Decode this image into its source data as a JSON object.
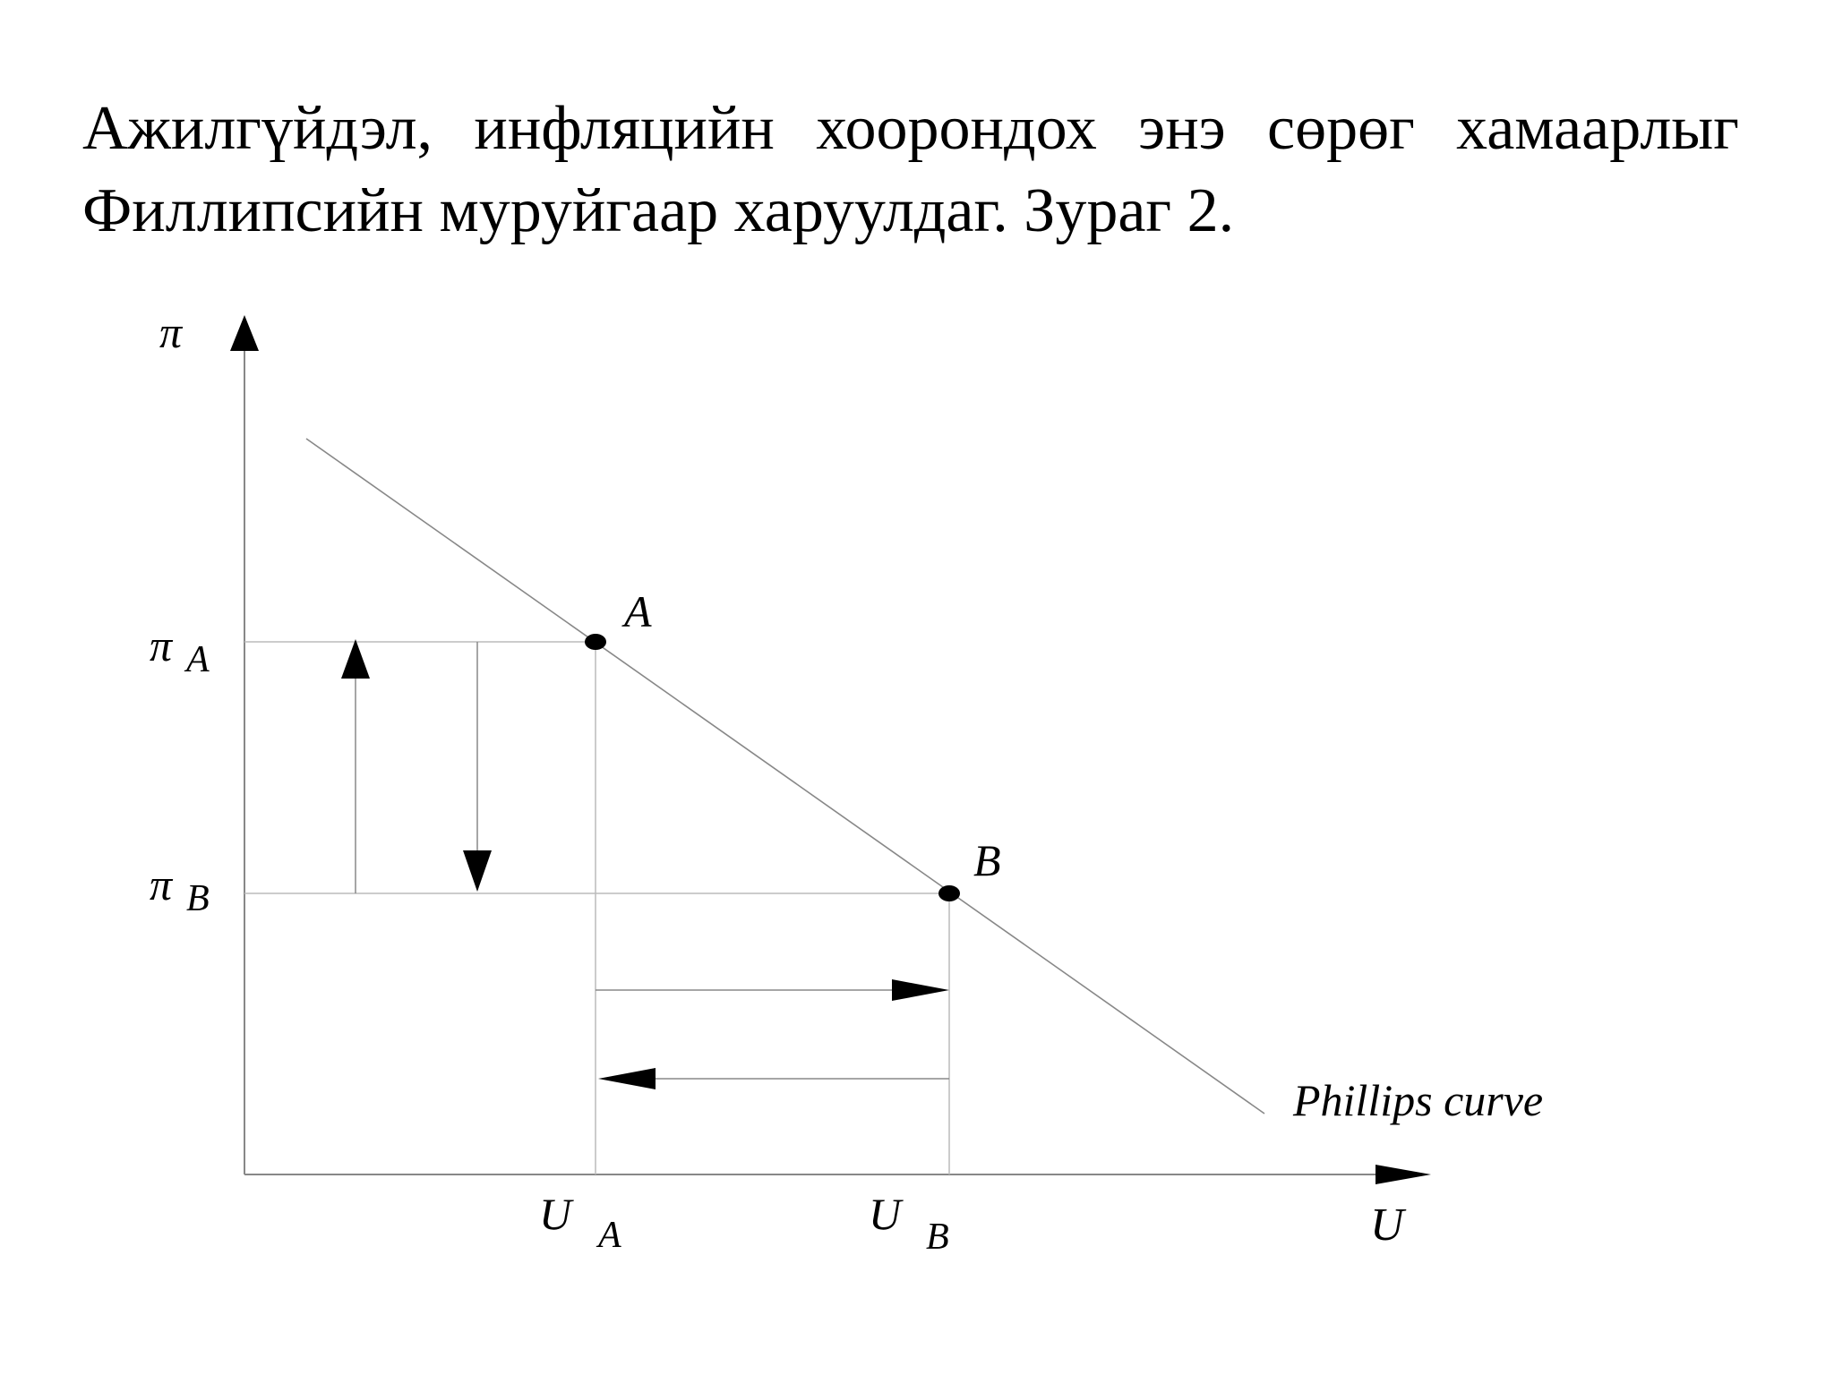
{
  "paragraph": {
    "line1": "Ажилгүйдэл, инфляцийн хоорондох энэ сөрөг хамаарлыг",
    "line2": "Филлипсийн муруйгаар харуулдаг. Зураг 2."
  },
  "diagram": {
    "y_axis_label": "π",
    "x_axis_label": "U",
    "pi_symbol": "π",
    "u_symbol": "U",
    "pi_a_subscript": "A",
    "pi_b_subscript": "B",
    "u_a_subscript": "A",
    "u_b_subscript": "B",
    "point_a_label": "A",
    "point_b_label": "B",
    "curve_label": "Phillips curve"
  }
}
